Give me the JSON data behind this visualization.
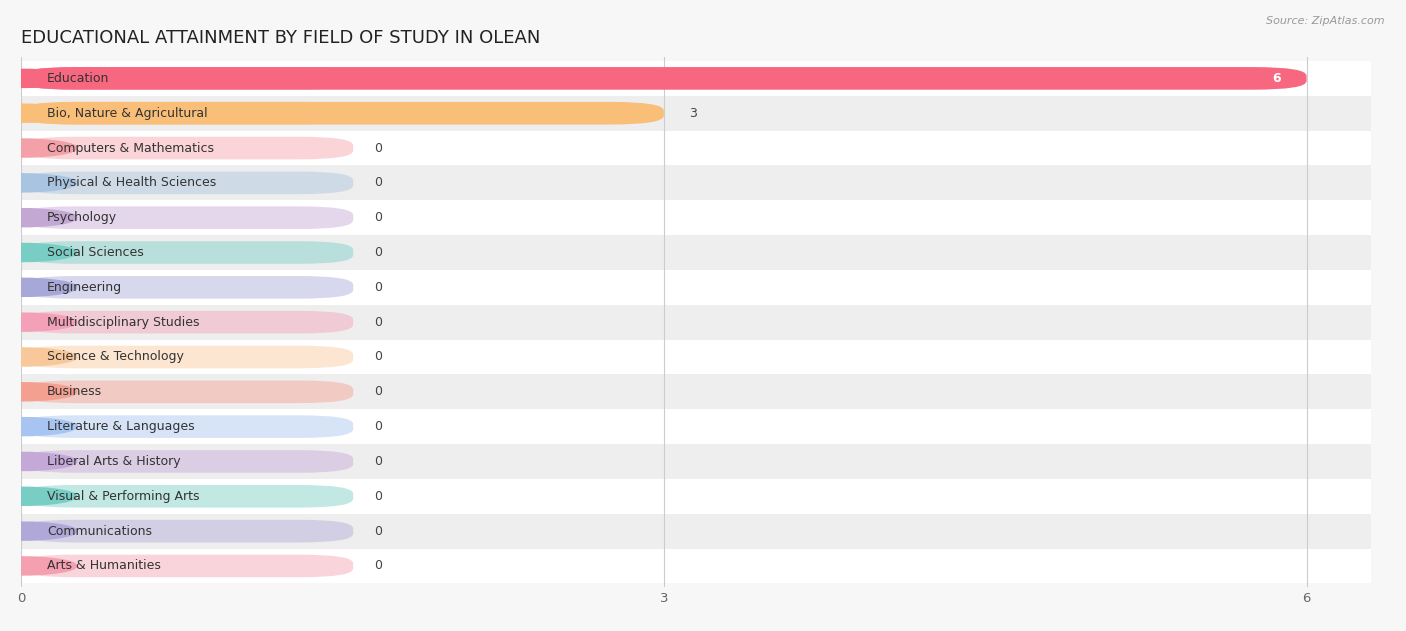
{
  "title": "EDUCATIONAL ATTAINMENT BY FIELD OF STUDY IN OLEAN",
  "source": "Source: ZipAtlas.com",
  "categories": [
    "Education",
    "Bio, Nature & Agricultural",
    "Computers & Mathematics",
    "Physical & Health Sciences",
    "Psychology",
    "Social Sciences",
    "Engineering",
    "Multidisciplinary Studies",
    "Science & Technology",
    "Business",
    "Literature & Languages",
    "Liberal Arts & History",
    "Visual & Performing Arts",
    "Communications",
    "Arts & Humanities"
  ],
  "values": [
    6,
    3,
    0,
    0,
    0,
    0,
    0,
    0,
    0,
    0,
    0,
    0,
    0,
    0,
    0
  ],
  "bar_colors": [
    "#F76880",
    "#F9BE78",
    "#F4A0A8",
    "#A8C4E0",
    "#C4A8D4",
    "#78CEC4",
    "#A8A8D8",
    "#F4A0B8",
    "#F9C89A",
    "#F4A090",
    "#A8C4F0",
    "#C4A8D8",
    "#78CEC4",
    "#B0A8D8",
    "#F4A0B0"
  ],
  "xlim": [
    0,
    6.3
  ],
  "xticks": [
    0,
    3,
    6
  ],
  "background_color": "#f7f7f7",
  "row_bg_even": "#ffffff",
  "row_bg_odd": "#eeeeee",
  "title_fontsize": 13,
  "label_fontsize": 9,
  "value_fontsize": 9,
  "bar_height": 0.65,
  "label_bar_width": 1.55,
  "rounding_size": 0.25
}
